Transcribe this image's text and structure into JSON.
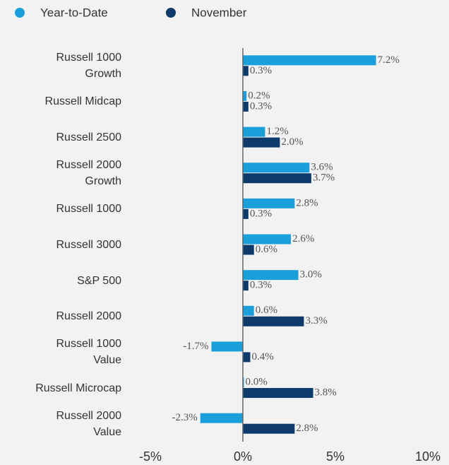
{
  "chart_data": {
    "type": "bar",
    "orientation": "horizontal",
    "categories": [
      "Russell 1000 Growth",
      "Russell Midcap",
      "Russell 2500",
      "Russell 2000 Growth",
      "Russell 1000",
      "Russell 3000",
      "S&P 500",
      "Russell 2000",
      "Russell 1000 Value",
      "Russell Microcap",
      "Russell 2000 Value"
    ],
    "series": [
      {
        "name": "Year-to-Date",
        "color": "#1a9fdb",
        "values": [
          7.2,
          0.2,
          1.2,
          3.6,
          2.8,
          2.6,
          3.0,
          0.6,
          -1.7,
          0.0,
          -2.3
        ],
        "value_labels": [
          "7.2%",
          "0.2%",
          "1.2%",
          "3.6%",
          "2.8%",
          "2.6%",
          "3.0%",
          "0.6%",
          "-1.7%",
          "0.0%",
          "-2.3%"
        ]
      },
      {
        "name": "November",
        "color": "#0b3a6b",
        "values": [
          0.3,
          0.3,
          2.0,
          3.7,
          0.3,
          0.6,
          0.3,
          3.3,
          0.4,
          3.8,
          2.8
        ],
        "value_labels": [
          "0.3%",
          "0.3%",
          "2.0%",
          "3.7%",
          "0.3%",
          "0.6%",
          "0.3%",
          "3.3%",
          "0.4%",
          "3.8%",
          "2.8%"
        ]
      }
    ],
    "xlim": [
      -5,
      10
    ],
    "xticks": [
      {
        "value": -5,
        "label": "-5%"
      },
      {
        "value": 0,
        "label": "0%"
      },
      {
        "value": 5,
        "label": "5%"
      },
      {
        "value": 10,
        "label": "10%"
      }
    ],
    "grid": false,
    "legend": "top-left"
  }
}
